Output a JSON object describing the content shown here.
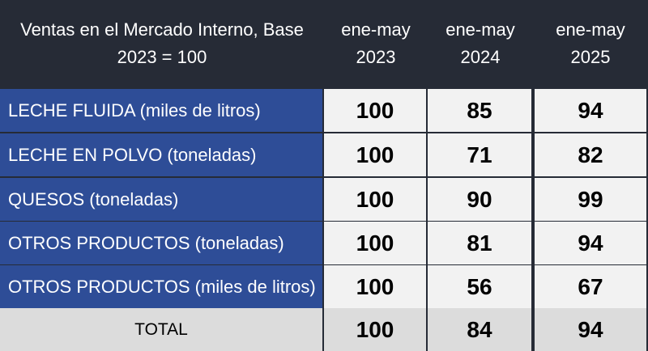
{
  "header": {
    "title_line1": "Ventas en el Mercado Interno, Base",
    "title_line2": "2023 = 100",
    "columns": [
      {
        "line1": "ene-may",
        "line2": "2023"
      },
      {
        "line1": "ene-may",
        "line2": "2024"
      },
      {
        "line1": "ene-may",
        "line2": "2025"
      }
    ]
  },
  "rows": [
    {
      "label": "LECHE FLUIDA (miles de litros)",
      "values": [
        "100",
        "85",
        "94"
      ]
    },
    {
      "label": "LECHE EN POLVO (toneladas)",
      "values": [
        "100",
        "71",
        "82"
      ]
    },
    {
      "label": "QUESOS (toneladas)",
      "values": [
        "100",
        "90",
        "99"
      ]
    },
    {
      "label": "OTROS PRODUCTOS (toneladas)",
      "values": [
        "100",
        "81",
        "94"
      ]
    },
    {
      "label": "OTROS PRODUCTOS (miles de litros)",
      "values": [
        "100",
        "56",
        "67"
      ]
    }
  ],
  "total": {
    "label": "TOTAL",
    "values": [
      "100",
      "84",
      "94"
    ]
  },
  "colors": {
    "header_bg": "#262b36",
    "label_bg": "#2e4d97",
    "value_bg": "#f2f2f2",
    "total_bg": "#dcdcdc"
  }
}
